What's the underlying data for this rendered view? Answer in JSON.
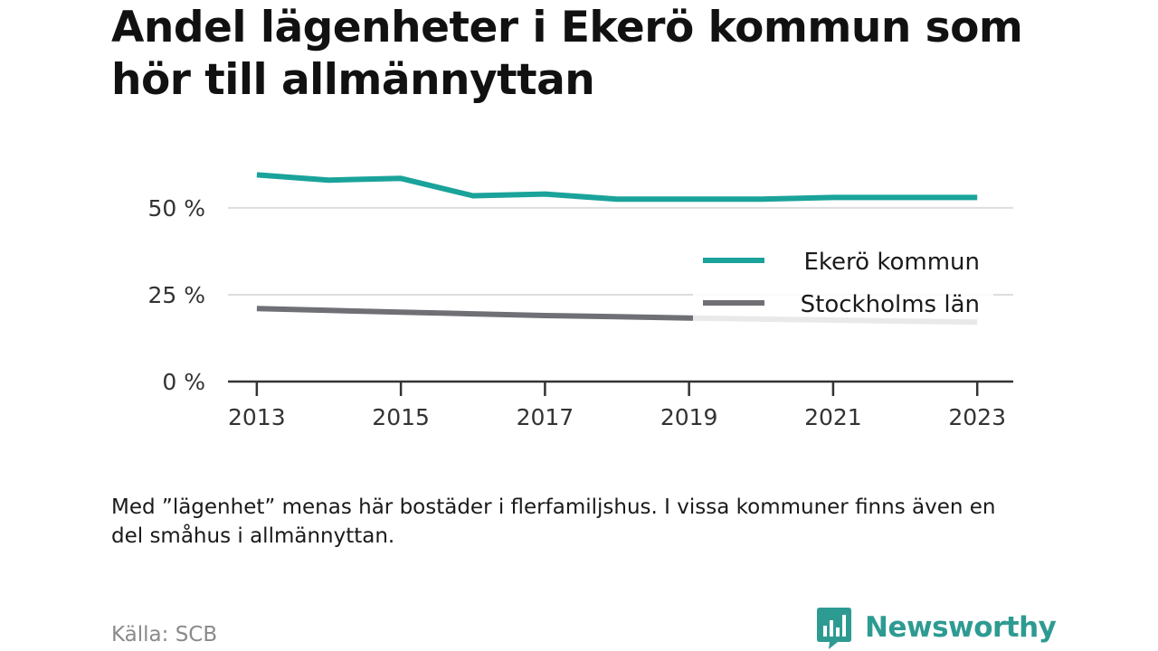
{
  "title": "Andel lägenheter i Ekerö kommun som hör till allmännyttan",
  "note": "Med ”lägenhet” menas här bostäder i flerfamiljshus. I vissa kommuner finns även en del småhus i allmännyttan.",
  "source": "Källa: SCB",
  "brand": {
    "name": "Newsworthy",
    "icon": "newsworthy-logo-icon"
  },
  "colors": {
    "series_ekero": "#1aa39a",
    "series_stockholm": "#6f6f76",
    "grid": "#dddddd",
    "axis": "#333333",
    "brand": "#2e9b92"
  },
  "chart_data": {
    "type": "line",
    "x": [
      2013,
      2014,
      2015,
      2016,
      2017,
      2018,
      2019,
      2020,
      2021,
      2022,
      2023
    ],
    "xticks": [
      2013,
      2015,
      2017,
      2019,
      2021,
      2023
    ],
    "xtick_labels": [
      "2013",
      "2015",
      "2017",
      "2019",
      "2021",
      "2023"
    ],
    "yticks": [
      0,
      25,
      50
    ],
    "ytick_labels": [
      "0 %",
      "25 %",
      "50 %"
    ],
    "ylim": [
      0,
      63
    ],
    "xlim": [
      2012.6,
      2023.5
    ],
    "grid": true,
    "legend_position": "right",
    "series": [
      {
        "name": "Ekerö kommun",
        "values": [
          59.5,
          58,
          58.5,
          53.5,
          54,
          52.5,
          52.5,
          52.5,
          53,
          53,
          53
        ]
      },
      {
        "name": "Stockholms län",
        "values": [
          21,
          20.5,
          20,
          19.5,
          19,
          18.7,
          18.3,
          18,
          17.7,
          17.4,
          17.1
        ]
      }
    ]
  }
}
